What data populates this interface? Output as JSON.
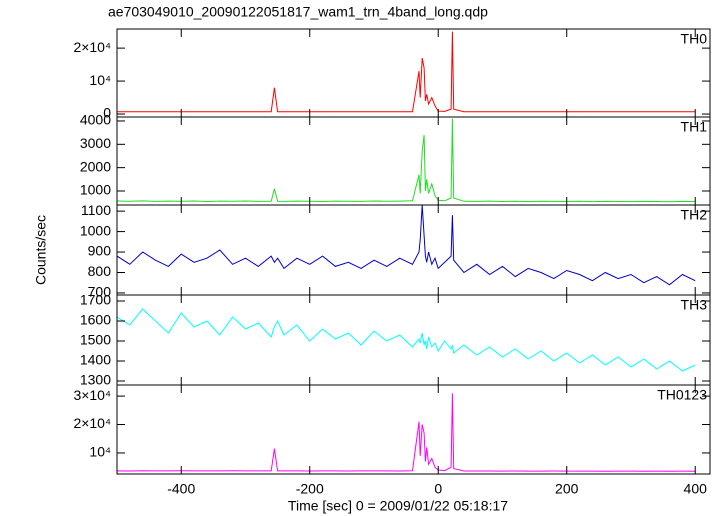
{
  "chart_data": [
    {
      "type": "line",
      "title": "ae703049010_20090122051817_wam1_trn_4band_long.qdp",
      "label": "TH0",
      "color": "#ff0000",
      "x": [
        -500,
        -480,
        -460,
        -440,
        -420,
        -400,
        -380,
        -360,
        -340,
        -320,
        -300,
        -280,
        -260,
        -255,
        -250,
        -240,
        -220,
        -200,
        -180,
        -160,
        -140,
        -120,
        -100,
        -80,
        -60,
        -40,
        -30,
        -28,
        -25,
        -22,
        -20,
        -18,
        -15,
        -10,
        -5,
        0,
        10,
        20,
        22,
        24,
        40,
        60,
        80,
        100,
        120,
        140,
        160,
        180,
        200,
        220,
        240,
        260,
        280,
        300,
        320,
        340,
        360,
        380,
        400
      ],
      "values": [
        700,
        720,
        690,
        710,
        700,
        680,
        710,
        700,
        690,
        700,
        720,
        690,
        700,
        8000,
        700,
        690,
        700,
        710,
        680,
        700,
        690,
        700,
        710,
        690,
        700,
        720,
        13000,
        5000,
        17000,
        14000,
        4000,
        6000,
        3000,
        5000,
        2500,
        900,
        800,
        1500,
        25000,
        1500,
        700,
        690,
        710,
        700,
        680,
        700,
        690,
        700,
        710,
        690,
        700,
        680,
        700,
        690,
        700,
        710,
        690,
        700,
        700
      ],
      "xlim": [
        -500,
        423
      ],
      "ylim": [
        -900,
        25800
      ],
      "yticks": [
        0,
        {
          "value": 10000,
          "label": "10⁴"
        },
        {
          "value": 20000,
          "label": "2×10⁴"
        }
      ]
    },
    {
      "type": "line",
      "label": "TH1",
      "color": "#22dd22",
      "x": [
        -500,
        -480,
        -460,
        -440,
        -420,
        -400,
        -380,
        -360,
        -340,
        -320,
        -300,
        -280,
        -260,
        -255,
        -250,
        -240,
        -220,
        -200,
        -180,
        -160,
        -140,
        -120,
        -100,
        -80,
        -60,
        -40,
        -30,
        -28,
        -25,
        -22,
        -20,
        -18,
        -15,
        -10,
        -5,
        0,
        10,
        20,
        22,
        24,
        40,
        60,
        80,
        100,
        120,
        140,
        160,
        180,
        200,
        220,
        240,
        260,
        280,
        300,
        320,
        340,
        360,
        380,
        400
      ],
      "values": [
        570,
        560,
        575,
        555,
        565,
        560,
        570,
        550,
        565,
        560,
        570,
        555,
        560,
        1100,
        560,
        555,
        565,
        560,
        550,
        565,
        560,
        555,
        570,
        560,
        565,
        580,
        1700,
        900,
        2700,
        3400,
        1000,
        1500,
        900,
        1300,
        800,
        600,
        580,
        700,
        4100,
        700,
        560,
        555,
        565,
        550,
        560,
        545,
        560,
        555,
        550,
        560,
        545,
        555,
        550,
        545,
        555,
        550,
        540,
        555,
        550
      ],
      "xlim": [
        -500,
        423
      ],
      "ylim": [
        400,
        4170
      ],
      "yticks": [
        1000,
        2000,
        3000,
        4000
      ]
    },
    {
      "type": "line",
      "label": "TH2",
      "color": "#0000cc",
      "ylabel": "Counts/sec",
      "x": [
        -500,
        -480,
        -460,
        -440,
        -420,
        -400,
        -380,
        -360,
        -340,
        -320,
        -300,
        -280,
        -260,
        -255,
        -250,
        -240,
        -220,
        -200,
        -180,
        -160,
        -140,
        -120,
        -100,
        -80,
        -60,
        -40,
        -30,
        -28,
        -25,
        -22,
        -20,
        -18,
        -15,
        -10,
        -5,
        0,
        10,
        20,
        22,
        24,
        40,
        60,
        80,
        100,
        120,
        140,
        160,
        180,
        200,
        220,
        240,
        260,
        280,
        300,
        320,
        340,
        360,
        380,
        400
      ],
      "values": [
        880,
        840,
        900,
        860,
        830,
        890,
        850,
        870,
        910,
        840,
        870,
        830,
        880,
        850,
        870,
        820,
        870,
        840,
        880,
        830,
        850,
        820,
        860,
        830,
        870,
        840,
        900,
        960,
        1130,
        980,
        880,
        850,
        900,
        840,
        870,
        820,
        850,
        880,
        1080,
        860,
        800,
        840,
        790,
        830,
        780,
        820,
        800,
        770,
        810,
        790,
        760,
        800,
        770,
        790,
        750,
        780,
        740,
        790,
        760
      ],
      "xlim": [
        -500,
        423
      ],
      "ylim": [
        690,
        1130
      ],
      "yticks": [
        700,
        800,
        900,
        1000,
        1100
      ]
    },
    {
      "type": "line",
      "label": "TH3",
      "color": "#00ffff",
      "x": [
        -500,
        -480,
        -460,
        -440,
        -420,
        -400,
        -380,
        -360,
        -340,
        -320,
        -300,
        -280,
        -260,
        -255,
        -250,
        -240,
        -220,
        -200,
        -180,
        -160,
        -140,
        -120,
        -100,
        -80,
        -60,
        -40,
        -30,
        -28,
        -25,
        -22,
        -20,
        -18,
        -15,
        -10,
        -5,
        0,
        10,
        20,
        22,
        24,
        40,
        60,
        80,
        100,
        120,
        140,
        160,
        180,
        200,
        220,
        240,
        260,
        280,
        300,
        320,
        340,
        360,
        380,
        400
      ],
      "values": [
        1620,
        1580,
        1660,
        1600,
        1540,
        1640,
        1570,
        1600,
        1530,
        1620,
        1560,
        1590,
        1520,
        1570,
        1600,
        1530,
        1580,
        1500,
        1560,
        1510,
        1540,
        1480,
        1550,
        1500,
        1530,
        1470,
        1510,
        1490,
        1540,
        1480,
        1500,
        1460,
        1520,
        1470,
        1490,
        1450,
        1500,
        1460,
        1480,
        1440,
        1480,
        1430,
        1470,
        1420,
        1460,
        1410,
        1450,
        1400,
        1440,
        1390,
        1430,
        1380,
        1420,
        1370,
        1410,
        1360,
        1400,
        1350,
        1380
      ],
      "xlim": [
        -500,
        423
      ],
      "ylim": [
        1280,
        1730
      ],
      "yticks": [
        1300,
        1400,
        1500,
        1600,
        1700
      ]
    },
    {
      "type": "line",
      "label": "TH0123",
      "color": "#ff00ff",
      "xlabel": "Time [sec] 0 = 2009/01/22 05:18:17",
      "x": [
        -500,
        -480,
        -460,
        -440,
        -420,
        -400,
        -380,
        -360,
        -340,
        -320,
        -300,
        -280,
        -260,
        -255,
        -250,
        -240,
        -220,
        -200,
        -180,
        -160,
        -140,
        -120,
        -100,
        -80,
        -60,
        -40,
        -30,
        -28,
        -25,
        -22,
        -20,
        -18,
        -15,
        -10,
        -5,
        0,
        10,
        20,
        22,
        24,
        40,
        60,
        80,
        100,
        120,
        140,
        160,
        180,
        200,
        220,
        240,
        260,
        280,
        300,
        320,
        340,
        360,
        380,
        400
      ],
      "values": [
        3700,
        3650,
        3750,
        3700,
        3680,
        3720,
        3690,
        3700,
        3680,
        3710,
        3690,
        3700,
        3680,
        11500,
        3700,
        3680,
        3700,
        3660,
        3690,
        3700,
        3670,
        3690,
        3680,
        3700,
        3670,
        3750,
        21000,
        9000,
        20000,
        17000,
        7000,
        12000,
        6000,
        8000,
        5000,
        4000,
        3800,
        5000,
        31000,
        4500,
        3650,
        3640,
        3660,
        3620,
        3640,
        3630,
        3620,
        3640,
        3610,
        3630,
        3620,
        3600,
        3620,
        3610,
        3600,
        3620,
        3590,
        3610,
        3600
      ],
      "xlim": [
        -500,
        423
      ],
      "ylim": [
        2600,
        33900
      ],
      "yticks": [
        {
          "value": 10000,
          "label": "10⁴"
        },
        {
          "value": 20000,
          "label": "2×10⁴"
        },
        {
          "value": 30000,
          "label": "3×10⁴"
        }
      ],
      "xticks": [
        -400,
        -200,
        0,
        200,
        400
      ]
    }
  ]
}
